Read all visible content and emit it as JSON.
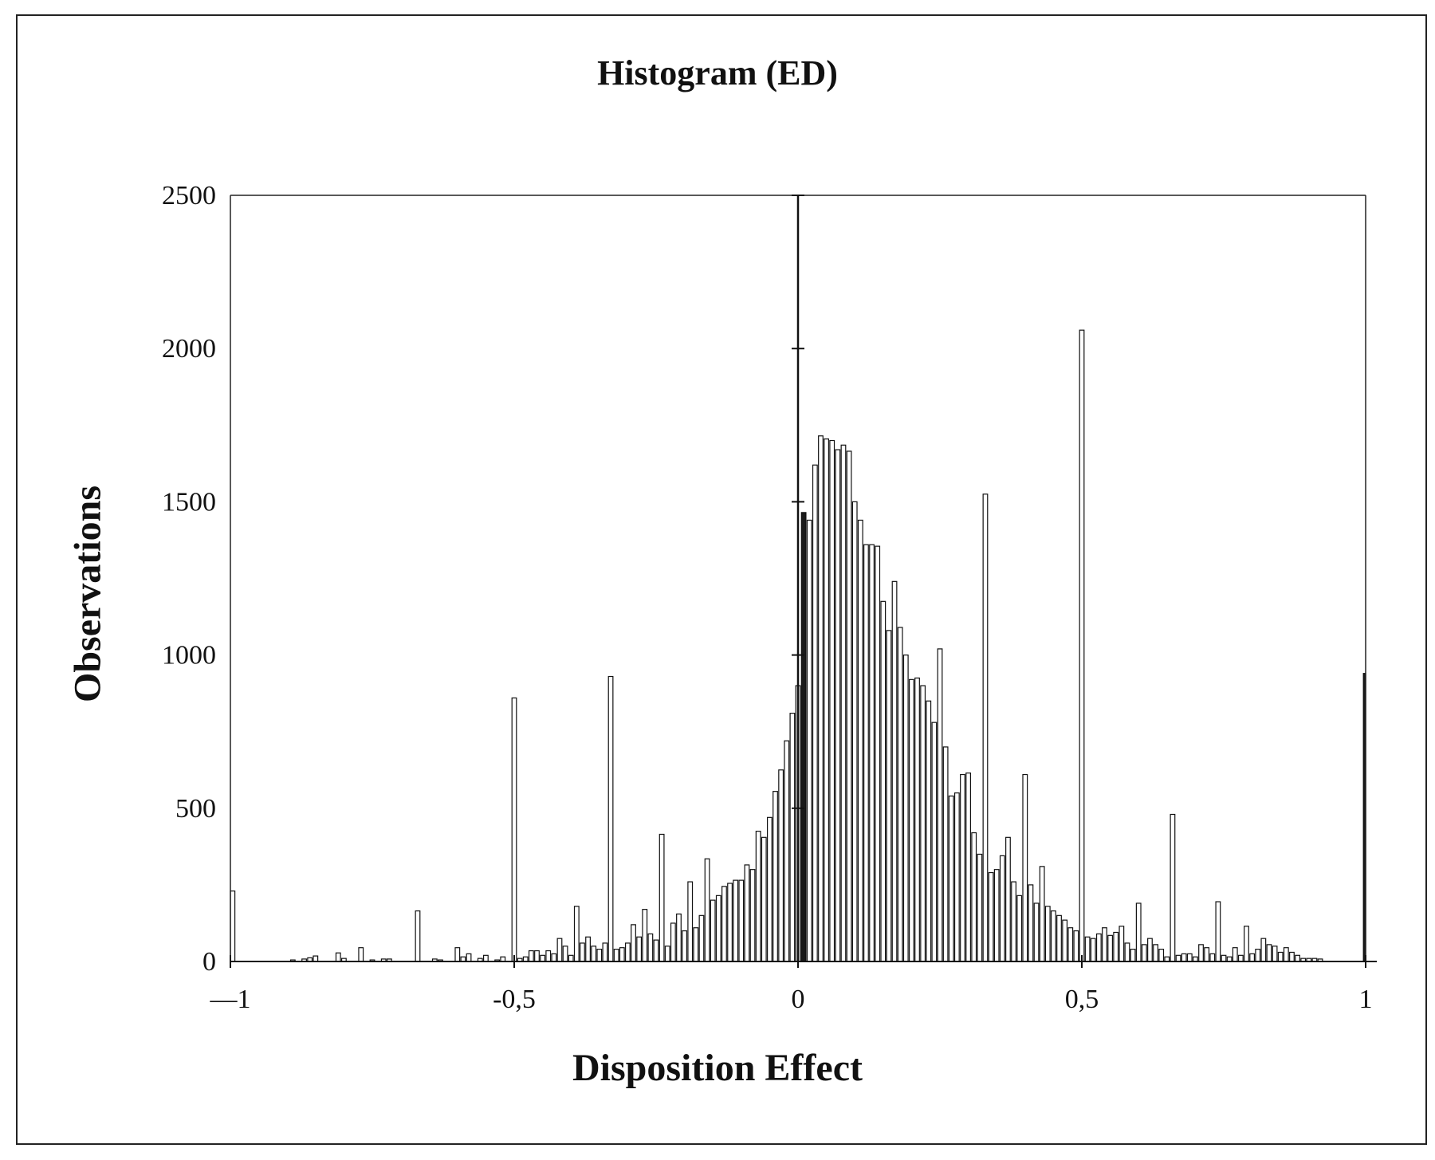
{
  "chart_data": {
    "type": "bar",
    "title": "Histogram (ED)",
    "xlabel": "Disposition Effect",
    "ylabel": "Observations",
    "xlim": [
      -1,
      1
    ],
    "ylim": [
      0,
      2500
    ],
    "x_ticks": [
      -1,
      -0.5,
      0,
      0.5,
      1
    ],
    "x_tick_labels": [
      "—1",
      "-0,5",
      "0",
      "0,5",
      "1"
    ],
    "y_ticks": [
      0,
      500,
      1000,
      1500,
      2000,
      2500
    ],
    "y_tick_labels": [
      "0",
      "500",
      "1000",
      "1500",
      "2000",
      "2500"
    ],
    "grid": false,
    "bin_width": 0.01,
    "series": [
      {
        "bins": [
          {
            "x": -1.0,
            "y": 230
          },
          {
            "x": -0.89,
            "y": 5
          },
          {
            "x": -0.87,
            "y": 8
          },
          {
            "x": -0.86,
            "y": 12
          },
          {
            "x": -0.85,
            "y": 18
          },
          {
            "x": -0.81,
            "y": 28
          },
          {
            "x": -0.8,
            "y": 10
          },
          {
            "x": -0.77,
            "y": 45
          },
          {
            "x": -0.75,
            "y": 5
          },
          {
            "x": -0.73,
            "y": 8
          },
          {
            "x": -0.72,
            "y": 8
          },
          {
            "x": -0.67,
            "y": 165
          },
          {
            "x": -0.64,
            "y": 8
          },
          {
            "x": -0.63,
            "y": 5
          },
          {
            "x": -0.6,
            "y": 45
          },
          {
            "x": -0.59,
            "y": 15
          },
          {
            "x": -0.58,
            "y": 25
          },
          {
            "x": -0.56,
            "y": 10
          },
          {
            "x": -0.55,
            "y": 20
          },
          {
            "x": -0.53,
            "y": 5
          },
          {
            "x": -0.52,
            "y": 15
          },
          {
            "x": -0.5,
            "y": 860
          },
          {
            "x": -0.49,
            "y": 10
          },
          {
            "x": -0.48,
            "y": 15
          },
          {
            "x": -0.47,
            "y": 35
          },
          {
            "x": -0.46,
            "y": 35
          },
          {
            "x": -0.45,
            "y": 20
          },
          {
            "x": -0.44,
            "y": 35
          },
          {
            "x": -0.43,
            "y": 25
          },
          {
            "x": -0.42,
            "y": 75
          },
          {
            "x": -0.41,
            "y": 50
          },
          {
            "x": -0.4,
            "y": 20
          },
          {
            "x": -0.39,
            "y": 180
          },
          {
            "x": -0.38,
            "y": 60
          },
          {
            "x": -0.37,
            "y": 80
          },
          {
            "x": -0.36,
            "y": 50
          },
          {
            "x": -0.35,
            "y": 40
          },
          {
            "x": -0.34,
            "y": 60
          },
          {
            "x": -0.33,
            "y": 930
          },
          {
            "x": -0.32,
            "y": 40
          },
          {
            "x": -0.31,
            "y": 45
          },
          {
            "x": -0.3,
            "y": 60
          },
          {
            "x": -0.29,
            "y": 120
          },
          {
            "x": -0.28,
            "y": 80
          },
          {
            "x": -0.27,
            "y": 170
          },
          {
            "x": -0.26,
            "y": 90
          },
          {
            "x": -0.25,
            "y": 70
          },
          {
            "x": -0.24,
            "y": 415
          },
          {
            "x": -0.23,
            "y": 50
          },
          {
            "x": -0.22,
            "y": 125
          },
          {
            "x": -0.21,
            "y": 155
          },
          {
            "x": -0.2,
            "y": 100
          },
          {
            "x": -0.19,
            "y": 260
          },
          {
            "x": -0.18,
            "y": 110
          },
          {
            "x": -0.17,
            "y": 150
          },
          {
            "x": -0.16,
            "y": 335
          },
          {
            "x": -0.15,
            "y": 200
          },
          {
            "x": -0.14,
            "y": 215
          },
          {
            "x": -0.13,
            "y": 245
          },
          {
            "x": -0.12,
            "y": 255
          },
          {
            "x": -0.11,
            "y": 265
          },
          {
            "x": -0.1,
            "y": 265
          },
          {
            "x": -0.09,
            "y": 315
          },
          {
            "x": -0.08,
            "y": 300
          },
          {
            "x": -0.07,
            "y": 425
          },
          {
            "x": -0.06,
            "y": 405
          },
          {
            "x": -0.05,
            "y": 470
          },
          {
            "x": -0.04,
            "y": 555
          },
          {
            "x": -0.03,
            "y": 625
          },
          {
            "x": -0.02,
            "y": 720
          },
          {
            "x": -0.01,
            "y": 810
          },
          {
            "x": 0.0,
            "y": 900
          },
          {
            "x": 0.01,
            "y": 1465
          },
          {
            "x": 0.02,
            "y": 1440
          },
          {
            "x": 0.03,
            "y": 1620
          },
          {
            "x": 0.04,
            "y": 1715
          },
          {
            "x": 0.05,
            "y": 1705
          },
          {
            "x": 0.06,
            "y": 1700
          },
          {
            "x": 0.07,
            "y": 1670
          },
          {
            "x": 0.08,
            "y": 1685
          },
          {
            "x": 0.09,
            "y": 1665
          },
          {
            "x": 0.1,
            "y": 1500
          },
          {
            "x": 0.11,
            "y": 1440
          },
          {
            "x": 0.12,
            "y": 1360
          },
          {
            "x": 0.13,
            "y": 1360
          },
          {
            "x": 0.14,
            "y": 1355
          },
          {
            "x": 0.15,
            "y": 1175
          },
          {
            "x": 0.16,
            "y": 1080
          },
          {
            "x": 0.17,
            "y": 1240
          },
          {
            "x": 0.18,
            "y": 1090
          },
          {
            "x": 0.19,
            "y": 1000
          },
          {
            "x": 0.2,
            "y": 920
          },
          {
            "x": 0.21,
            "y": 925
          },
          {
            "x": 0.22,
            "y": 900
          },
          {
            "x": 0.23,
            "y": 850
          },
          {
            "x": 0.24,
            "y": 780
          },
          {
            "x": 0.25,
            "y": 1020
          },
          {
            "x": 0.26,
            "y": 700
          },
          {
            "x": 0.27,
            "y": 540
          },
          {
            "x": 0.28,
            "y": 550
          },
          {
            "x": 0.29,
            "y": 610
          },
          {
            "x": 0.3,
            "y": 615
          },
          {
            "x": 0.31,
            "y": 420
          },
          {
            "x": 0.32,
            "y": 350
          },
          {
            "x": 0.33,
            "y": 1525
          },
          {
            "x": 0.34,
            "y": 290
          },
          {
            "x": 0.35,
            "y": 300
          },
          {
            "x": 0.36,
            "y": 345
          },
          {
            "x": 0.37,
            "y": 405
          },
          {
            "x": 0.38,
            "y": 260
          },
          {
            "x": 0.39,
            "y": 215
          },
          {
            "x": 0.4,
            "y": 610
          },
          {
            "x": 0.41,
            "y": 250
          },
          {
            "x": 0.42,
            "y": 190
          },
          {
            "x": 0.43,
            "y": 310
          },
          {
            "x": 0.44,
            "y": 180
          },
          {
            "x": 0.45,
            "y": 165
          },
          {
            "x": 0.46,
            "y": 150
          },
          {
            "x": 0.47,
            "y": 135
          },
          {
            "x": 0.48,
            "y": 110
          },
          {
            "x": 0.49,
            "y": 100
          },
          {
            "x": 0.5,
            "y": 2060
          },
          {
            "x": 0.51,
            "y": 80
          },
          {
            "x": 0.52,
            "y": 75
          },
          {
            "x": 0.53,
            "y": 90
          },
          {
            "x": 0.54,
            "y": 110
          },
          {
            "x": 0.55,
            "y": 85
          },
          {
            "x": 0.56,
            "y": 95
          },
          {
            "x": 0.57,
            "y": 115
          },
          {
            "x": 0.58,
            "y": 60
          },
          {
            "x": 0.59,
            "y": 40
          },
          {
            "x": 0.6,
            "y": 190
          },
          {
            "x": 0.61,
            "y": 55
          },
          {
            "x": 0.62,
            "y": 75
          },
          {
            "x": 0.63,
            "y": 55
          },
          {
            "x": 0.64,
            "y": 40
          },
          {
            "x": 0.65,
            "y": 15
          },
          {
            "x": 0.66,
            "y": 480
          },
          {
            "x": 0.67,
            "y": 20
          },
          {
            "x": 0.68,
            "y": 25
          },
          {
            "x": 0.69,
            "y": 25
          },
          {
            "x": 0.7,
            "y": 15
          },
          {
            "x": 0.71,
            "y": 55
          },
          {
            "x": 0.72,
            "y": 45
          },
          {
            "x": 0.73,
            "y": 25
          },
          {
            "x": 0.74,
            "y": 195
          },
          {
            "x": 0.75,
            "y": 20
          },
          {
            "x": 0.76,
            "y": 15
          },
          {
            "x": 0.77,
            "y": 45
          },
          {
            "x": 0.78,
            "y": 20
          },
          {
            "x": 0.79,
            "y": 115
          },
          {
            "x": 0.8,
            "y": 25
          },
          {
            "x": 0.81,
            "y": 40
          },
          {
            "x": 0.82,
            "y": 75
          },
          {
            "x": 0.83,
            "y": 55
          },
          {
            "x": 0.84,
            "y": 50
          },
          {
            "x": 0.85,
            "y": 30
          },
          {
            "x": 0.86,
            "y": 45
          },
          {
            "x": 0.87,
            "y": 30
          },
          {
            "x": 0.88,
            "y": 20
          },
          {
            "x": 0.89,
            "y": 10
          },
          {
            "x": 0.9,
            "y": 10
          },
          {
            "x": 0.91,
            "y": 10
          },
          {
            "x": 0.92,
            "y": 8
          },
          {
            "x": 1.0,
            "y": 940
          }
        ]
      }
    ]
  }
}
